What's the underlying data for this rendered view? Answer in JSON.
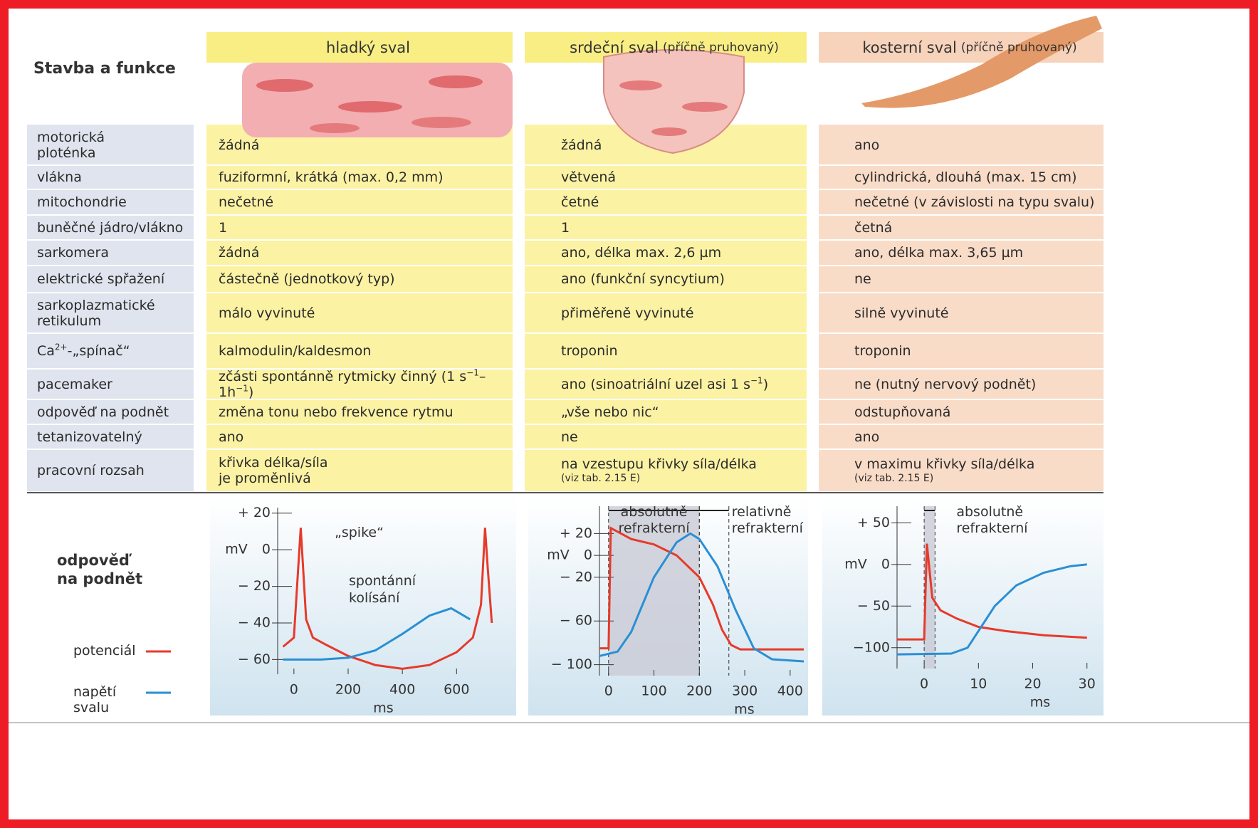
{
  "header": {
    "title": "Stavba a funkce",
    "columns": [
      {
        "name": "hladký sval"
      },
      {
        "name": "srdeční sval",
        "note": "(příčně pruhovaný)"
      },
      {
        "name": "kosterní sval",
        "note": "(příčně pruhovaný)"
      }
    ]
  },
  "table": {
    "rows": [
      {
        "label": "motorická\nploténka",
        "cells": [
          "žádná",
          "žádná",
          "ano"
        ]
      },
      {
        "label": "vlákna",
        "cells": [
          "fuziformní, krátká (max. 0,2 mm)",
          "větvená",
          "cylindrická, dlouhá (max. 15 cm)"
        ]
      },
      {
        "label": "mitochondrie",
        "cells": [
          "nečetné",
          "četné",
          "nečetné (v závislosti na typu svalu)"
        ]
      },
      {
        "label": "buněčné jádro/vlákno",
        "cells": [
          "1",
          "1",
          "četná"
        ]
      },
      {
        "label": "sarkomera",
        "cells": [
          "žádná",
          "ano, délka max. 2,6 µm",
          "ano, délka max. 3,65 µm"
        ]
      },
      {
        "label": "elektrické spřažení",
        "cells": [
          "částečně (jednotkový typ)",
          "ano (funkční syncytium)",
          "ne"
        ]
      },
      {
        "label": "sarkoplazmatické\nretikulum",
        "cells": [
          "málo vyvinuté",
          "přiměřeně vyvinuté",
          "silně vyvinuté"
        ]
      },
      {
        "label": [
          "Ca",
          {
            "sup": "2+"
          },
          "-„spínač“"
        ],
        "cells": [
          "kalmodulin/kaldesmon",
          "troponin",
          "troponin"
        ]
      },
      {
        "label": "pacemaker",
        "cells": [
          [
            "zčásti spontánně rytmicky činný (1 s",
            {
              "sup": "−1"
            },
            "–1h",
            {
              "sup": "−1"
            },
            ")"
          ],
          [
            "ano (sinoatriální uzel asi 1 s",
            {
              "sup": "−1"
            },
            ")"
          ],
          "ne (nutný nervový podnět)"
        ]
      },
      {
        "label": "odpověď na podnět",
        "cells": [
          "změna tonu nebo frekvence rytmu",
          "„vše nebo nic“",
          "odstupňovaná"
        ]
      },
      {
        "label": "tetanizovatelný",
        "cells": [
          "ano",
          "ne",
          "ano"
        ]
      },
      {
        "label": "pracovní rozsah",
        "cells": [
          "křivka délka/síla\nje proměnlivá",
          [
            "na vzestupu křivky síla/délka",
            {
              "note": "(viz tab. 2.15 E)"
            }
          ],
          [
            "v maximu křivky síla/délka",
            {
              "note": "(viz tab. 2.15 E)"
            }
          ]
        ]
      }
    ]
  },
  "response": {
    "title": "odpověď\nna podnět",
    "legend": [
      {
        "name": "potenciál",
        "color": "#e63a2a"
      },
      {
        "name": "napětí\nsvalu",
        "color": "#2a8fd4"
      }
    ]
  },
  "chart_data": [
    {
      "type": "line",
      "y_label": "mV",
      "x_label": "ms",
      "xlim": [
        -60,
        720
      ],
      "ylim": [
        -68,
        23
      ],
      "xticks": [
        0,
        200,
        400,
        600
      ],
      "yticks": [
        {
          "value": 20,
          "label": "+ 20"
        },
        0,
        {
          "value": -20,
          "label": "− 20"
        },
        {
          "value": -40,
          "label": "− 40"
        },
        {
          "value": -60,
          "label": "− 60"
        }
      ],
      "annotations": [
        {
          "text": "„spike“"
        },
        {
          "text": "spontánní\nkolísání"
        }
      ],
      "series": [
        {
          "color": "#e63a2a",
          "x": [
            -40,
            0,
            25,
            45,
            70,
            120,
            200,
            300,
            400,
            500,
            600,
            660,
            690,
            705,
            715,
            730
          ],
          "values": [
            -53,
            -48,
            12,
            -38,
            -48,
            -52,
            -58,
            -63,
            -65,
            -63,
            -56,
            -48,
            -30,
            12,
            -10,
            -40
          ]
        },
        {
          "color": "#2a8fd4",
          "x": [
            -40,
            100,
            200,
            300,
            400,
            500,
            580,
            650
          ],
          "values": [
            -60,
            -60,
            -59,
            -55,
            -46,
            -36,
            -32,
            -38
          ]
        }
      ]
    },
    {
      "type": "line",
      "y_label": "mV",
      "x_label": "ms",
      "xlim": [
        -20,
        430
      ],
      "ylim": [
        -110,
        45
      ],
      "xticks": [
        0,
        100,
        200,
        300,
        400
      ],
      "yticks": [
        {
          "value": 20,
          "label": "+ 20"
        },
        0,
        {
          "value": -20,
          "label": "− 20"
        },
        {
          "value": -60,
          "label": "− 60"
        },
        {
          "value": -100,
          "label": "− 100"
        }
      ],
      "regions": [
        {
          "label": "absolutně\nrefrakterní",
          "from": 0,
          "to": 200,
          "shaded": true
        },
        {
          "label": "relativně\nrefrakterní",
          "from": 200,
          "to": 265,
          "shaded": false
        }
      ],
      "series": [
        {
          "color": "#e63a2a",
          "x": [
            -20,
            0,
            5,
            50,
            100,
            150,
            200,
            230,
            250,
            270,
            290,
            430
          ],
          "values": [
            -85,
            -85,
            25,
            15,
            10,
            0,
            -20,
            -45,
            -68,
            -82,
            -86,
            -86
          ]
        },
        {
          "color": "#2a8fd4",
          "x": [
            -20,
            20,
            50,
            100,
            150,
            180,
            200,
            240,
            280,
            320,
            360,
            430
          ],
          "values": [
            -92,
            -88,
            -70,
            -20,
            12,
            20,
            15,
            -10,
            -50,
            -85,
            -95,
            -97
          ]
        }
      ]
    },
    {
      "type": "line",
      "y_label": "mV",
      "x_label": "ms",
      "xlim": [
        -5,
        32
      ],
      "ylim": [
        -125,
        70
      ],
      "xticks": [
        0,
        10,
        20,
        30
      ],
      "yticks": [
        {
          "value": 50,
          "label": "+ 50"
        },
        0,
        {
          "value": -50,
          "label": "− 50"
        },
        {
          "value": -100,
          "label": "−100"
        }
      ],
      "regions": [
        {
          "label": "absolutně\nrefrakterní",
          "from": 0,
          "to": 2,
          "shaded": true
        }
      ],
      "series": [
        {
          "color": "#e63a2a",
          "x": [
            -5,
            0,
            0.5,
            1.5,
            3,
            6,
            10,
            15,
            22,
            30
          ],
          "values": [
            -90,
            -90,
            25,
            -40,
            -55,
            -65,
            -75,
            -80,
            -85,
            -88
          ]
        },
        {
          "color": "#2a8fd4",
          "x": [
            -5,
            5,
            8,
            10,
            13,
            17,
            22,
            27,
            30
          ],
          "values": [
            -108,
            -107,
            -100,
            -80,
            -50,
            -25,
            -10,
            -2,
            0
          ]
        }
      ]
    }
  ]
}
